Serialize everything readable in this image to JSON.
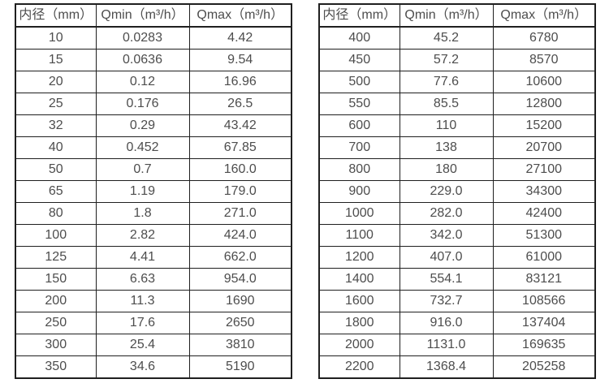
{
  "page": {
    "background": "#ffffff"
  },
  "colors": {
    "border": "#1f1f1f",
    "text": "#4d4d4d"
  },
  "tables": [
    {
      "name": "small-diameter-flow-table",
      "headers": [
        "内径（mm）",
        "Qmin（m³/h）",
        "Qmax（m³/h）"
      ],
      "rows": [
        [
          "10",
          "0.0283",
          "4.42"
        ],
        [
          "15",
          "0.0636",
          "9.54"
        ],
        [
          "20",
          "0.12",
          "16.96"
        ],
        [
          "25",
          "0.176",
          "26.5"
        ],
        [
          "32",
          "0.29",
          "43.42"
        ],
        [
          "40",
          "0.452",
          "67.85"
        ],
        [
          "50",
          "0.7",
          "160.0"
        ],
        [
          "65",
          "1.19",
          "179.0"
        ],
        [
          "80",
          "1.8",
          "271.0"
        ],
        [
          "100",
          "2.82",
          "424.0"
        ],
        [
          "125",
          "4.41",
          "662.0"
        ],
        [
          "150",
          "6.63",
          "954.0"
        ],
        [
          "200",
          "11.3",
          "1690"
        ],
        [
          "250",
          "17.6",
          "2650"
        ],
        [
          "300",
          "25.4",
          "3810"
        ],
        [
          "350",
          "34.6",
          "5190"
        ]
      ]
    },
    {
      "name": "large-diameter-flow-table",
      "headers": [
        "内径（mm）",
        "Qmin（m³/h）",
        "Qmax（m³/h）"
      ],
      "rows": [
        [
          "400",
          "45.2",
          "6780"
        ],
        [
          "450",
          "57.2",
          "8570"
        ],
        [
          "500",
          "77.6",
          "10600"
        ],
        [
          "550",
          "85.5",
          "12800"
        ],
        [
          "600",
          "110",
          "15200"
        ],
        [
          "700",
          "138",
          "20700"
        ],
        [
          "800",
          "180",
          "27100"
        ],
        [
          "900",
          "229.0",
          "34300"
        ],
        [
          "1000",
          "282.0",
          "42400"
        ],
        [
          "1100",
          "342.0",
          "51300"
        ],
        [
          "1200",
          "407.0",
          "61000"
        ],
        [
          "1400",
          "554.1",
          "83121"
        ],
        [
          "1600",
          "732.7",
          "108566"
        ],
        [
          "1800",
          "916.0",
          "137404"
        ],
        [
          "2000",
          "1131.0",
          "169635"
        ],
        [
          "2200",
          "1368.4",
          "205258"
        ]
      ]
    }
  ]
}
